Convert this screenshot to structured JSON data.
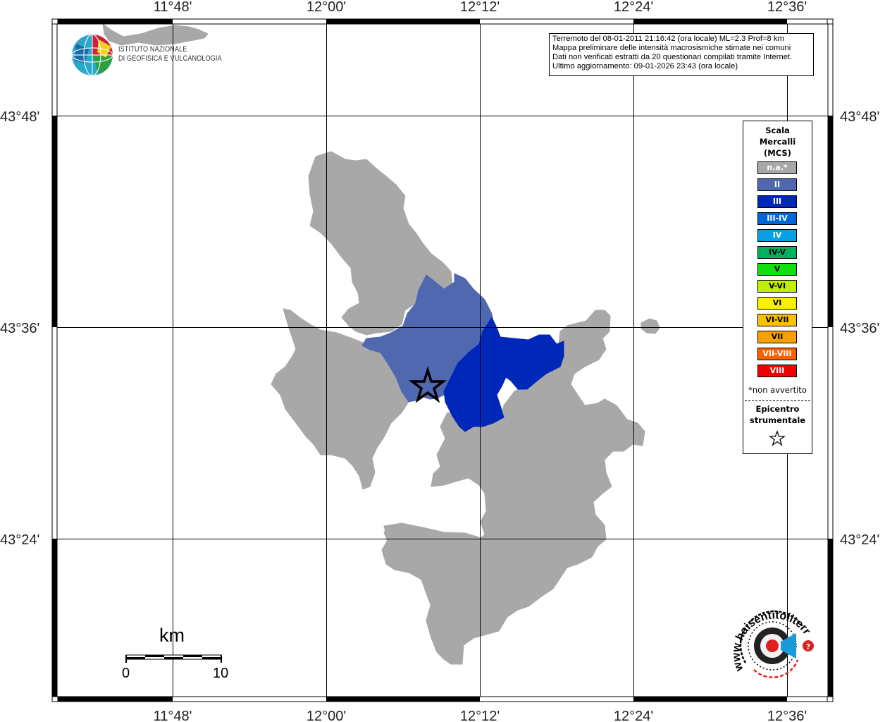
{
  "header": {
    "info_lines": [
      "Terremoto del 08-01-2011 21:16:42 (ora locale) ML=2.3 Prof=8 km",
      "Mappa preliminare delle intensità macrosismiche stimate nei comuni",
      "Dati non verificati estratti da 20 questionari compilati tramite Internet.",
      "Ultimo aggiornamento: 09-01-2026 23:43 (ora locale)"
    ]
  },
  "institute": {
    "line1": "ISTITUTO NAZIONALE",
    "line2": "DI GEOFISICA E VULCANOLOGIA"
  },
  "grid": {
    "lon_labels": [
      "11°48'",
      "12°00'",
      "12°12'",
      "12°24'",
      "12°36'"
    ],
    "lat_labels": [
      "43°48'",
      "43°36'",
      "43°24'"
    ]
  },
  "legend": {
    "title_lines": [
      "Scala",
      "Mercalli",
      "(MCS)"
    ],
    "items": [
      {
        "label": "n.a.*",
        "color": "#a8a8a8"
      },
      {
        "label": "II",
        "color": "#5068b0"
      },
      {
        "label": "III",
        "color": "#0028b8"
      },
      {
        "label": "III-IV",
        "color": "#0066d8"
      },
      {
        "label": "IV",
        "color": "#0aa0e8"
      },
      {
        "label": "IV-V",
        "color": "#00b060"
      },
      {
        "label": "V",
        "color": "#10e010"
      },
      {
        "label": "V-VI",
        "color": "#c0f000"
      },
      {
        "label": "VI",
        "color": "#f8f000"
      },
      {
        "label": "VI-VII",
        "color": "#f8c000"
      },
      {
        "label": "VII",
        "color": "#f8a000"
      },
      {
        "label": "VII-VIII",
        "color": "#f86000"
      },
      {
        "label": "VIII",
        "color": "#f00000"
      }
    ],
    "note": "*non avvertito",
    "epicenter_lines": [
      "Epicentro",
      "strumentale"
    ]
  },
  "scale_bar": {
    "unit": "km",
    "start": "0",
    "end": "10"
  },
  "map_colors": {
    "not_felt": "#a8a8a8",
    "intensity_II": "#5068b0",
    "intensity_III": "#0028b8"
  },
  "website_badge": {
    "text": "www.haisentitoilterremoto.it"
  }
}
